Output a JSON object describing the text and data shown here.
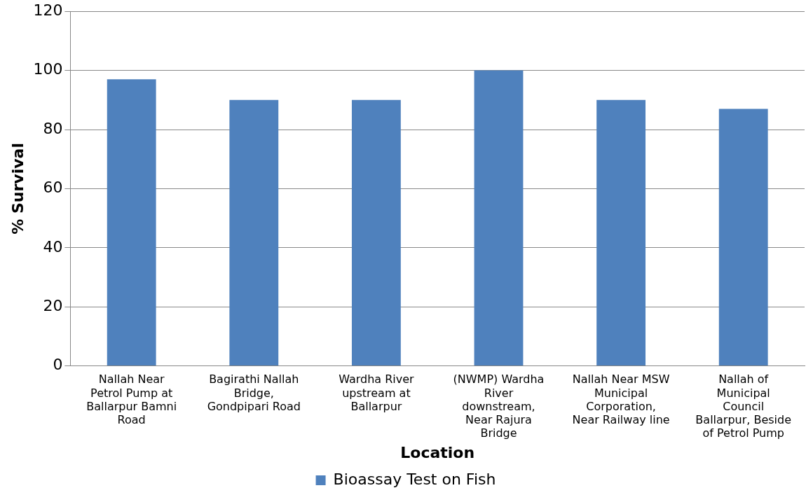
{
  "chart_data": {
    "type": "bar",
    "xlabel": "Location",
    "ylabel": "% Survival",
    "categories": [
      "Nallah Near Petrol Pump at Ballarpur Bamni Road",
      "Bagirathi Nallah Bridge, Gondpipari Road",
      "Wardha River upstream at Ballarpur",
      "(NWMP) Wardha River downstream, Near Rajura Bridge",
      "Nallah Near MSW Municipal Corporation, Near Railway line",
      "Nallah of Municipal Council Ballarpur, Beside of Petrol Pump"
    ],
    "series": [
      {
        "name": "Bioassay Test on Fish",
        "color": "#4f81bd",
        "values": [
          97,
          90,
          90,
          100,
          90,
          87
        ]
      }
    ],
    "ylim": [
      0,
      120
    ],
    "yticks": [
      0,
      20,
      40,
      60,
      80,
      100,
      120
    ],
    "grid": "y",
    "legend": "bottom"
  }
}
